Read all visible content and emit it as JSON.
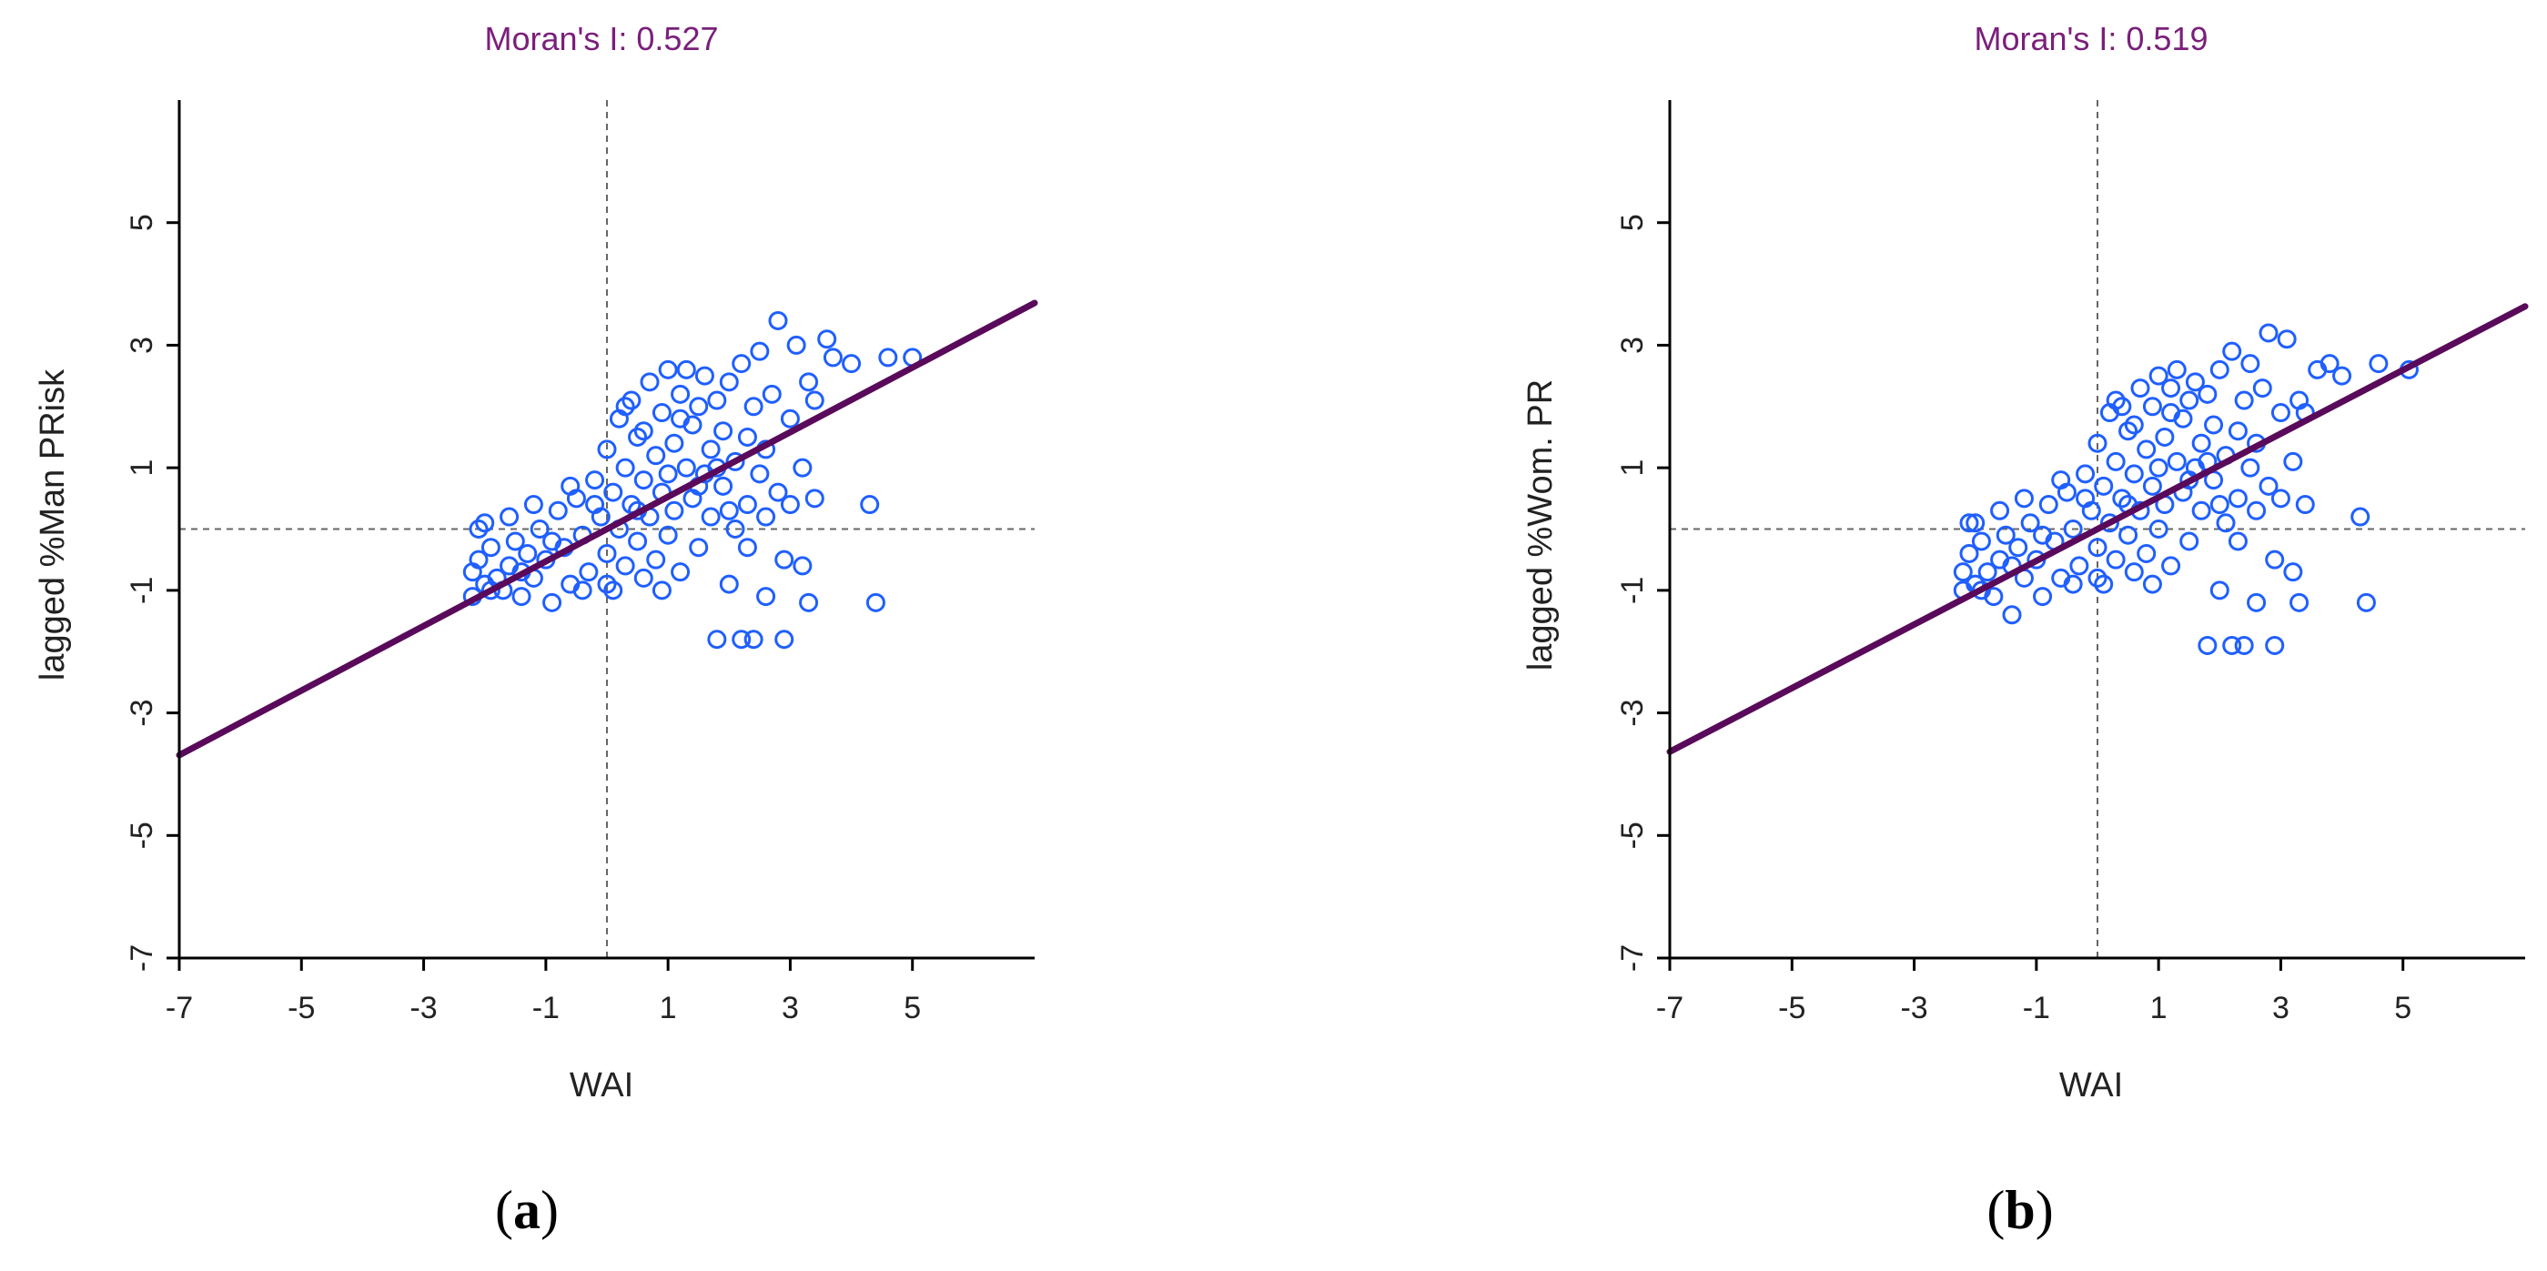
{
  "chart_data": [
    {
      "type": "scatter",
      "panel_label": "a",
      "title": "Moran's I: 0.527",
      "xlabel": "WAI",
      "ylabel": "lagged %Man PRisk",
      "xlim": [
        -7,
        7
      ],
      "ylim": [
        -7,
        7
      ],
      "xticks": [
        -7,
        -5,
        -3,
        -1,
        1,
        3,
        5
      ],
      "yticks": [
        -7,
        -5,
        -3,
        -1,
        1,
        3,
        5
      ],
      "regression_slope": 0.527,
      "regression_intercept": 0,
      "reference_lines": {
        "x": 0,
        "y": 0
      },
      "colors": {
        "points": "#1f5fff",
        "fit_line": "#5a0a5a",
        "title": "#7a1f7a",
        "reference": "#666666"
      },
      "points": [
        [
          -2.2,
          -0.7
        ],
        [
          -2.1,
          -0.5
        ],
        [
          -2.0,
          -0.9
        ],
        [
          -2.2,
          -1.1
        ],
        [
          -1.9,
          -0.3
        ],
        [
          -1.8,
          -0.8
        ],
        [
          -1.7,
          -1.0
        ],
        [
          -2.0,
          0.1
        ],
        [
          -1.6,
          -0.6
        ],
        [
          -1.5,
          -0.2
        ],
        [
          -1.4,
          -1.1
        ],
        [
          -1.3,
          -0.4
        ],
        [
          -1.2,
          -0.8
        ],
        [
          -1.1,
          0.0
        ],
        [
          -1.0,
          -0.5
        ],
        [
          -0.9,
          -1.2
        ],
        [
          -0.8,
          0.3
        ],
        [
          -0.7,
          -0.3
        ],
        [
          -0.6,
          -0.9
        ],
        [
          -0.5,
          0.5
        ],
        [
          -0.4,
          -0.1
        ],
        [
          -0.3,
          -0.7
        ],
        [
          -0.2,
          0.8
        ],
        [
          -0.1,
          0.2
        ],
        [
          0.0,
          -0.4
        ],
        [
          0.0,
          1.3
        ],
        [
          0.1,
          0.6
        ],
        [
          0.1,
          -1.0
        ],
        [
          0.2,
          1.8
        ],
        [
          0.2,
          0.0
        ],
        [
          0.3,
          -0.6
        ],
        [
          0.3,
          1.0
        ],
        [
          0.4,
          0.4
        ],
        [
          0.4,
          2.1
        ],
        [
          0.5,
          -0.2
        ],
        [
          0.5,
          1.5
        ],
        [
          0.6,
          0.8
        ],
        [
          0.6,
          -0.8
        ],
        [
          0.7,
          2.4
        ],
        [
          0.7,
          0.2
        ],
        [
          0.8,
          1.2
        ],
        [
          0.8,
          -0.5
        ],
        [
          0.9,
          1.9
        ],
        [
          0.9,
          0.6
        ],
        [
          1.0,
          2.6
        ],
        [
          1.0,
          -0.1
        ],
        [
          1.1,
          1.4
        ],
        [
          1.1,
          0.3
        ],
        [
          1.2,
          2.2
        ],
        [
          1.2,
          -0.7
        ],
        [
          1.3,
          1.0
        ],
        [
          1.3,
          2.6
        ],
        [
          1.4,
          0.5
        ],
        [
          1.4,
          1.7
        ],
        [
          1.5,
          -0.3
        ],
        [
          1.5,
          2.0
        ],
        [
          1.6,
          0.9
        ],
        [
          1.6,
          2.5
        ],
        [
          1.7,
          0.2
        ],
        [
          1.7,
          1.3
        ],
        [
          1.8,
          2.1
        ],
        [
          1.8,
          -1.8
        ],
        [
          1.9,
          0.7
        ],
        [
          1.9,
          1.6
        ],
        [
          2.0,
          -0.9
        ],
        [
          2.0,
          2.4
        ],
        [
          2.1,
          1.1
        ],
        [
          2.1,
          0.0
        ],
        [
          2.2,
          2.7
        ],
        [
          2.2,
          -1.8
        ],
        [
          2.3,
          1.5
        ],
        [
          2.3,
          0.4
        ],
        [
          2.4,
          2.0
        ],
        [
          2.4,
          -1.8
        ],
        [
          2.5,
          0.9
        ],
        [
          2.5,
          2.9
        ],
        [
          2.6,
          1.3
        ],
        [
          2.6,
          -1.1
        ],
        [
          2.7,
          2.2
        ],
        [
          2.8,
          0.6
        ],
        [
          2.8,
          3.4
        ],
        [
          2.9,
          -0.5
        ],
        [
          2.9,
          -1.8
        ],
        [
          3.0,
          1.8
        ],
        [
          3.0,
          0.4
        ],
        [
          3.1,
          3.0
        ],
        [
          3.2,
          -0.6
        ],
        [
          3.2,
          1.0
        ],
        [
          3.3,
          2.4
        ],
        [
          3.3,
          -1.2
        ],
        [
          3.4,
          0.5
        ],
        [
          3.4,
          2.1
        ],
        [
          3.6,
          3.1
        ],
        [
          3.7,
          2.8
        ],
        [
          4.0,
          2.7
        ],
        [
          4.3,
          0.4
        ],
        [
          4.4,
          -1.2
        ],
        [
          4.6,
          2.8
        ],
        [
          5.0,
          2.8
        ],
        [
          -2.1,
          0.0
        ],
        [
          -1.9,
          -1.0
        ],
        [
          -1.6,
          0.2
        ],
        [
          -1.4,
          -0.7
        ],
        [
          -1.2,
          0.4
        ],
        [
          -0.9,
          -0.2
        ],
        [
          -0.6,
          0.7
        ],
        [
          -0.4,
          -1.0
        ],
        [
          -0.2,
          0.4
        ],
        [
          0.0,
          -0.9
        ],
        [
          0.3,
          2.0
        ],
        [
          0.6,
          1.6
        ],
        [
          0.9,
          -1.0
        ],
        [
          1.2,
          1.8
        ],
        [
          1.5,
          0.7
        ],
        [
          1.8,
          1.0
        ],
        [
          2.0,
          0.3
        ],
        [
          2.3,
          -0.3
        ],
        [
          2.6,
          0.2
        ],
        [
          1.0,
          0.9
        ],
        [
          0.5,
          0.3
        ]
      ]
    },
    {
      "type": "scatter",
      "panel_label": "b",
      "title": "Moran's I: 0.519",
      "xlabel": "WAI",
      "ylabel": "lagged %Wom. PR",
      "xlim": [
        -7,
        7
      ],
      "ylim": [
        -7,
        7
      ],
      "xticks": [
        -7,
        -5,
        -3,
        -1,
        1,
        3,
        5
      ],
      "yticks": [
        -7,
        -5,
        -3,
        -1,
        1,
        3,
        5
      ],
      "regression_slope": 0.519,
      "regression_intercept": 0,
      "reference_lines": {
        "x": 0,
        "y": 0
      },
      "colors": {
        "points": "#1f5fff",
        "fit_line": "#5a0a5a",
        "title": "#7a1f7a",
        "reference": "#666666"
      },
      "points": [
        [
          -2.2,
          -0.7
        ],
        [
          -2.1,
          -0.4
        ],
        [
          -2.0,
          -0.9
        ],
        [
          -2.2,
          -1.0
        ],
        [
          -1.9,
          -0.2
        ],
        [
          -1.8,
          -0.7
        ],
        [
          -1.7,
          -1.1
        ],
        [
          -2.0,
          0.1
        ],
        [
          -1.6,
          -0.5
        ],
        [
          -1.5,
          -0.1
        ],
        [
          -1.4,
          -1.4
        ],
        [
          -1.3,
          -0.3
        ],
        [
          -1.2,
          -0.8
        ],
        [
          -1.1,
          0.1
        ],
        [
          -1.0,
          -0.5
        ],
        [
          -0.9,
          -1.1
        ],
        [
          -0.8,
          0.4
        ],
        [
          -0.7,
          -0.2
        ],
        [
          -0.6,
          -0.8
        ],
        [
          -0.5,
          0.6
        ],
        [
          -0.4,
          0.0
        ],
        [
          -0.3,
          -0.6
        ],
        [
          -0.2,
          0.9
        ],
        [
          -0.1,
          0.3
        ],
        [
          0.0,
          -0.3
        ],
        [
          0.0,
          1.4
        ],
        [
          0.1,
          0.7
        ],
        [
          0.1,
          -0.9
        ],
        [
          0.2,
          1.9
        ],
        [
          0.2,
          0.1
        ],
        [
          0.3,
          -0.5
        ],
        [
          0.3,
          1.1
        ],
        [
          0.4,
          0.5
        ],
        [
          0.4,
          2.0
        ],
        [
          0.5,
          -0.1
        ],
        [
          0.5,
          1.6
        ],
        [
          0.6,
          0.9
        ],
        [
          0.6,
          -0.7
        ],
        [
          0.7,
          2.3
        ],
        [
          0.7,
          0.3
        ],
        [
          0.8,
          1.3
        ],
        [
          0.8,
          -0.4
        ],
        [
          0.9,
          2.0
        ],
        [
          0.9,
          0.7
        ],
        [
          1.0,
          2.5
        ],
        [
          1.0,
          0.0
        ],
        [
          1.1,
          1.5
        ],
        [
          1.1,
          0.4
        ],
        [
          1.2,
          2.3
        ],
        [
          1.2,
          -0.6
        ],
        [
          1.3,
          1.1
        ],
        [
          1.3,
          2.6
        ],
        [
          1.4,
          0.6
        ],
        [
          1.4,
          1.8
        ],
        [
          1.5,
          -0.2
        ],
        [
          1.5,
          2.1
        ],
        [
          1.6,
          1.0
        ],
        [
          1.6,
          2.4
        ],
        [
          1.7,
          0.3
        ],
        [
          1.7,
          1.4
        ],
        [
          1.8,
          2.2
        ],
        [
          1.8,
          -1.9
        ],
        [
          1.9,
          0.8
        ],
        [
          1.9,
          1.7
        ],
        [
          2.0,
          -1.0
        ],
        [
          2.0,
          2.6
        ],
        [
          2.1,
          1.2
        ],
        [
          2.1,
          0.1
        ],
        [
          2.2,
          2.9
        ],
        [
          2.2,
          -1.9
        ],
        [
          2.3,
          1.6
        ],
        [
          2.3,
          0.5
        ],
        [
          2.4,
          2.1
        ],
        [
          2.4,
          -1.9
        ],
        [
          2.5,
          1.0
        ],
        [
          2.5,
          2.7
        ],
        [
          2.6,
          1.4
        ],
        [
          2.6,
          -1.2
        ],
        [
          2.7,
          2.3
        ],
        [
          2.8,
          0.7
        ],
        [
          2.8,
          3.2
        ],
        [
          2.9,
          -0.5
        ],
        [
          2.9,
          -1.9
        ],
        [
          3.0,
          1.9
        ],
        [
          3.0,
          0.5
        ],
        [
          3.1,
          3.1
        ],
        [
          3.2,
          -0.7
        ],
        [
          3.2,
          1.1
        ],
        [
          3.3,
          2.1
        ],
        [
          3.3,
          -1.2
        ],
        [
          3.4,
          0.4
        ],
        [
          3.4,
          1.9
        ],
        [
          3.6,
          2.6
        ],
        [
          3.8,
          2.7
        ],
        [
          4.0,
          2.5
        ],
        [
          4.3,
          0.2
        ],
        [
          4.4,
          -1.2
        ],
        [
          4.6,
          2.7
        ],
        [
          5.1,
          2.6
        ],
        [
          -2.1,
          0.1
        ],
        [
          -1.9,
          -1.0
        ],
        [
          -1.6,
          0.3
        ],
        [
          -1.4,
          -0.6
        ],
        [
          -1.2,
          0.5
        ],
        [
          -0.9,
          -0.1
        ],
        [
          -0.6,
          0.8
        ],
        [
          -0.4,
          -0.9
        ],
        [
          -0.2,
          0.5
        ],
        [
          0.0,
          -0.8
        ],
        [
          0.3,
          2.1
        ],
        [
          0.6,
          1.7
        ],
        [
          0.9,
          -0.9
        ],
        [
          1.2,
          1.9
        ],
        [
          1.5,
          0.8
        ],
        [
          1.8,
          1.1
        ],
        [
          2.0,
          0.4
        ],
        [
          2.3,
          -0.2
        ],
        [
          2.6,
          0.3
        ],
        [
          1.0,
          1.0
        ],
        [
          0.5,
          0.4
        ]
      ]
    }
  ]
}
